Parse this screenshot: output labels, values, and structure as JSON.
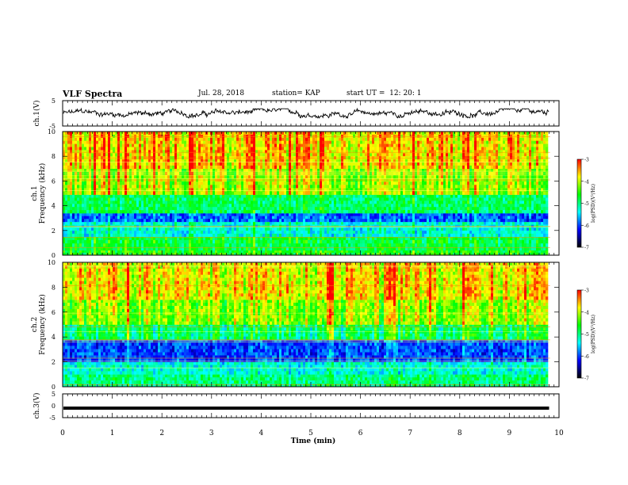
{
  "header": {
    "title": "VLF Spectra",
    "date": "Jul. 28, 2018",
    "station": "station= KAP",
    "start": "start UT =  12: 20: 1"
  },
  "colorbar": {
    "label": "log(PSD)(V²/Hz)",
    "ticks": [
      "-3",
      "-4",
      "-5",
      "-6",
      "-7"
    ],
    "colors": [
      "#ff0000",
      "#ffff00",
      "#00ff00",
      "#00ffff",
      "#0000ff",
      "#000000"
    ]
  },
  "chart_data": [
    {
      "type": "line",
      "name": "ch.1 waveform panel",
      "ylabel": "ch.1(V)",
      "yticks": [
        "5",
        "-5"
      ],
      "ylim": [
        -5,
        5
      ],
      "xlim": [
        0,
        10
      ],
      "data_end_min": 9.8,
      "approx_range": [
        -1.8,
        1.8
      ]
    },
    {
      "type": "heatmap",
      "name": "ch.1 spectrogram",
      "ylabel": "ch.1 Frequency (kHz)",
      "yticks": [
        "0",
        "2",
        "4",
        "6",
        "8",
        "10"
      ],
      "ylim": [
        0,
        10
      ],
      "xlim": [
        0,
        10
      ],
      "zlim": [
        -7,
        -3
      ],
      "bands": [
        {
          "from": 0.0,
          "to": 0.4,
          "log_psd": -4.6
        },
        {
          "from": 0.4,
          "to": 1.5,
          "log_psd": -4.8
        },
        {
          "from": 1.5,
          "to": 2.7,
          "log_psd": -5.3
        },
        {
          "from": 2.7,
          "to": 3.4,
          "log_psd": -5.9
        },
        {
          "from": 3.4,
          "to": 4.9,
          "log_psd": -4.9
        },
        {
          "from": 4.9,
          "to": 7.0,
          "log_psd": -4.1
        },
        {
          "from": 7.0,
          "to": 10.0,
          "log_psd": -3.7
        }
      ]
    },
    {
      "type": "heatmap",
      "name": "ch.2 spectrogram",
      "ylabel": "ch.2 Frequency (kHz)",
      "yticks": [
        "0",
        "2",
        "4",
        "6",
        "8",
        "10"
      ],
      "ylim": [
        0,
        10
      ],
      "xlim": [
        0,
        10
      ],
      "zlim": [
        -7,
        -3
      ],
      "bands": [
        {
          "from": 0.0,
          "to": 1.0,
          "log_psd": -5.0
        },
        {
          "from": 1.0,
          "to": 2.0,
          "log_psd": -5.3
        },
        {
          "from": 2.0,
          "to": 3.8,
          "log_psd": -6.0
        },
        {
          "from": 3.8,
          "to": 5.0,
          "log_psd": -4.9
        },
        {
          "from": 5.0,
          "to": 7.0,
          "log_psd": -4.2
        },
        {
          "from": 7.0,
          "to": 10.0,
          "log_psd": -3.8
        }
      ]
    },
    {
      "type": "line",
      "name": "ch.3 waveform panel",
      "ylabel": "ch.3(V)",
      "yticks": [
        "5",
        "0",
        "-5"
      ],
      "ylim": [
        -5,
        5
      ],
      "xlim": [
        0,
        10
      ],
      "data_end_min": 9.8,
      "constant_value": -1.0
    }
  ],
  "xaxis": {
    "label": "Time (min)",
    "ticks": [
      "0",
      "1",
      "2",
      "3",
      "4",
      "5",
      "6",
      "7",
      "8",
      "9",
      "10"
    ]
  }
}
